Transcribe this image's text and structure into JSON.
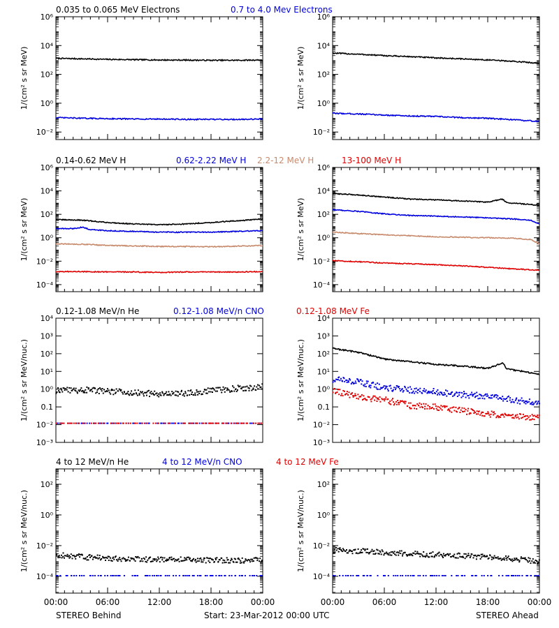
{
  "colors": {
    "black": "#000000",
    "blue": "#0000e0",
    "tan": "#c88a6c",
    "red": "#e00000"
  },
  "footer": {
    "left": "STEREO Behind",
    "center": "Start: 23-Mar-2012 00:00 UTC",
    "right": "STEREO Ahead"
  },
  "rows": [
    {
      "labels": [
        {
          "text": "0.035 to 0.065 MeV Electrons",
          "color": "black"
        },
        {
          "text": "0.7 to 4.0 Mev Electrons",
          "color": "blue"
        }
      ]
    },
    {
      "labels": [
        {
          "text": "0.14-0.62 MeV H",
          "color": "black"
        },
        {
          "text": "0.62-2.22 MeV H",
          "color": "blue"
        },
        {
          "text": "2.2-12 MeV H",
          "color": "tan"
        },
        {
          "text": "13-100 MeV H",
          "color": "red"
        }
      ]
    },
    {
      "labels": [
        {
          "text": "0.12-1.08 MeV/n He",
          "color": "black"
        },
        {
          "text": "0.12-1.08 MeV/n CNO",
          "color": "blue"
        },
        {
          "text": "0.12-1.08 MeV Fe",
          "color": "red"
        }
      ]
    },
    {
      "labels": [
        {
          "text": "4 to 12 MeV/n He",
          "color": "black"
        },
        {
          "text": "4 to 12 MeV/n CNO",
          "color": "blue"
        },
        {
          "text": "4 to 12 MeV Fe",
          "color": "red"
        }
      ]
    }
  ],
  "chart_data": [
    {
      "type": "line",
      "spacecraft": "STEREO Behind",
      "row": 0,
      "col": 0,
      "ylabel": "1/(cm² s sr MeV)",
      "ylog": true,
      "ylim": [
        0.003,
        1000000
      ],
      "ytick_exps": [
        -2,
        0,
        2,
        4,
        6
      ],
      "minor_ticks": true,
      "x": [
        "00:00",
        "06:00",
        "12:00",
        "18:00",
        "00:00"
      ],
      "xlim_hours": [
        0,
        24
      ],
      "series": [
        {
          "name": "0.035 to 0.065 MeV Electrons",
          "color": "black",
          "style": "line",
          "t": [
            0,
            3,
            6,
            9,
            12,
            15,
            18,
            21,
            24
          ],
          "v": [
            1300,
            1200,
            1100,
            1050,
            1000,
            980,
            950,
            950,
            1000
          ]
        },
        {
          "name": "0.7 to 4.0 Mev Electrons",
          "color": "blue",
          "style": "line",
          "t": [
            0,
            3,
            6,
            9,
            12,
            15,
            18,
            21,
            24
          ],
          "v": [
            0.1,
            0.09,
            0.085,
            0.08,
            0.08,
            0.075,
            0.075,
            0.075,
            0.08
          ]
        }
      ]
    },
    {
      "type": "line",
      "spacecraft": "STEREO Ahead",
      "row": 0,
      "col": 1,
      "ylabel": "1/(cm² s sr MeV)",
      "ylog": true,
      "ylim": [
        0.003,
        1000000
      ],
      "ytick_exps": [
        -2,
        0,
        2,
        4,
        6
      ],
      "minor_ticks": true,
      "x": [
        "00:00",
        "06:00",
        "12:00",
        "18:00",
        "00:00"
      ],
      "xlim_hours": [
        0,
        24
      ],
      "series": [
        {
          "name": "0.035 to 0.065 MeV Electrons",
          "color": "black",
          "style": "line",
          "t": [
            0,
            3,
            6,
            9,
            12,
            15,
            18,
            21,
            24
          ],
          "v": [
            3000,
            2500,
            2000,
            1700,
            1400,
            1200,
            1000,
            800,
            600
          ]
        },
        {
          "name": "0.7 to 4.0 Mev Electrons",
          "color": "blue",
          "style": "line",
          "t": [
            0,
            3,
            6,
            9,
            12,
            15,
            18,
            21,
            24
          ],
          "v": [
            0.2,
            0.18,
            0.15,
            0.13,
            0.12,
            0.1,
            0.09,
            0.07,
            0.055
          ]
        }
      ]
    },
    {
      "type": "line",
      "spacecraft": "STEREO Behind",
      "row": 1,
      "col": 0,
      "ylabel": "1/(cm² s sr MeV)",
      "ylog": true,
      "ylim": [
        2.5e-05,
        1000000
      ],
      "ytick_exps": [
        -4,
        -2,
        0,
        2,
        4,
        6
      ],
      "minor_ticks": true,
      "x": [
        "00:00",
        "06:00",
        "12:00",
        "18:00",
        "00:00"
      ],
      "xlim_hours": [
        0,
        24
      ],
      "series": [
        {
          "name": "0.14-0.62 MeV H",
          "color": "black",
          "style": "line",
          "t": [
            0,
            3,
            6,
            9,
            12,
            15,
            18,
            21,
            24
          ],
          "v": [
            35,
            32,
            20,
            15,
            13,
            15,
            20,
            28,
            40
          ]
        },
        {
          "name": "0.62-2.22 MeV H",
          "color": "blue",
          "style": "line",
          "t": [
            0,
            2,
            3,
            4,
            6,
            9,
            12,
            15,
            18,
            21,
            24
          ],
          "v": [
            6,
            6,
            8,
            5,
            4,
            3.5,
            3,
            3,
            3,
            3.5,
            4
          ]
        },
        {
          "name": "2.2-12 MeV H",
          "color": "tan",
          "style": "line",
          "t": [
            0,
            3,
            6,
            9,
            12,
            15,
            18,
            21,
            24
          ],
          "v": [
            0.3,
            0.28,
            0.22,
            0.2,
            0.18,
            0.18,
            0.17,
            0.19,
            0.22
          ]
        },
        {
          "name": "13-100 MeV H",
          "color": "red",
          "style": "line",
          "t": [
            0,
            3,
            6,
            9,
            12,
            15,
            18,
            21,
            24
          ],
          "v": [
            0.0013,
            0.0013,
            0.0012,
            0.0012,
            0.0011,
            0.0012,
            0.0012,
            0.0012,
            0.0013
          ]
        }
      ]
    },
    {
      "type": "line",
      "spacecraft": "STEREO Ahead",
      "row": 1,
      "col": 1,
      "ylabel": "1/(cm² s sr MeV)",
      "ylog": true,
      "ylim": [
        2.5e-05,
        1000000
      ],
      "ytick_exps": [
        -4,
        -2,
        0,
        2,
        4,
        6
      ],
      "minor_ticks": true,
      "x": [
        "00:00",
        "06:00",
        "12:00",
        "18:00",
        "00:00"
      ],
      "xlim_hours": [
        0,
        24
      ],
      "series": [
        {
          "name": "0.14-0.62 MeV H",
          "color": "black",
          "style": "line",
          "t": [
            0,
            3,
            6,
            9,
            12,
            15,
            18,
            19.7,
            20.2,
            21,
            24
          ],
          "v": [
            6000,
            4500,
            3000,
            2000,
            1700,
            1400,
            1100,
            2000,
            1000,
            900,
            600
          ]
        },
        {
          "name": "0.62-2.22 MeV H",
          "color": "blue",
          "style": "line",
          "t": [
            0,
            3,
            6,
            9,
            12,
            15,
            18,
            21,
            23,
            24
          ],
          "v": [
            250,
            180,
            110,
            80,
            70,
            60,
            50,
            40,
            30,
            15
          ]
        },
        {
          "name": "2.2-12 MeV H",
          "color": "tan",
          "style": "line",
          "t": [
            0,
            3,
            6,
            9,
            12,
            15,
            18,
            21,
            23,
            24
          ],
          "v": [
            3,
            2.3,
            1.8,
            1.5,
            1.2,
            1.1,
            1.0,
            0.9,
            0.7,
            0.3
          ]
        },
        {
          "name": "13-100 MeV H",
          "color": "red",
          "style": "line",
          "t": [
            0,
            3,
            6,
            9,
            12,
            15,
            18,
            21,
            24
          ],
          "v": [
            0.011,
            0.009,
            0.007,
            0.006,
            0.005,
            0.004,
            0.003,
            0.0022,
            0.0017
          ]
        }
      ]
    },
    {
      "type": "scatter",
      "spacecraft": "STEREO Behind",
      "row": 2,
      "col": 0,
      "ylabel": "1/(cm² s sr MeV/nuc.)",
      "ylog": true,
      "ylim": [
        0.001,
        10000
      ],
      "ytick_exps": [
        -3,
        -2,
        -1,
        0,
        1,
        2,
        3,
        4
      ],
      "tick_text": [
        "10⁻³",
        "10⁻²",
        "0.1",
        "10⁰",
        "10¹",
        "10²",
        "10³",
        "10⁴"
      ],
      "minor_ticks": false,
      "x": [
        "00:00",
        "06:00",
        "12:00",
        "18:00",
        "00:00"
      ],
      "xlim_hours": [
        0,
        24
      ],
      "series": [
        {
          "name": "0.12-1.08 MeV/n He",
          "color": "black",
          "style": "scatter",
          "t": [
            0,
            3,
            6,
            9,
            12,
            15,
            18,
            21,
            24
          ],
          "v": [
            0.8,
            0.9,
            0.8,
            0.6,
            0.55,
            0.6,
            0.8,
            1.1,
            1.4
          ]
        },
        {
          "name": "0.12-1.08 MeV/n CNO",
          "color": "blue",
          "style": "scatter",
          "t": [
            0,
            6,
            12,
            18,
            24
          ],
          "v": [
            0.012,
            0.012,
            0.012,
            0.012,
            0.012
          ]
        },
        {
          "name": "0.12-1.08 MeV Fe",
          "color": "red",
          "style": "scatter",
          "t": [
            0,
            6,
            12,
            18,
            24
          ],
          "v": [
            0.012,
            0.012,
            0.012,
            0.012,
            0.012
          ]
        }
      ]
    },
    {
      "type": "scatter",
      "spacecraft": "STEREO Ahead",
      "row": 2,
      "col": 1,
      "ylabel": "1/(cm² s sr MeV/nuc.)",
      "ylog": true,
      "ylim": [
        0.001,
        10000
      ],
      "ytick_exps": [
        -3,
        -2,
        -1,
        0,
        1,
        2,
        3,
        4
      ],
      "tick_text": [
        "10⁻³",
        "10⁻²",
        "0.1",
        "10⁰",
        "10¹",
        "10²",
        "10³",
        "10⁴"
      ],
      "minor_ticks": false,
      "x": [
        "00:00",
        "06:00",
        "12:00",
        "18:00",
        "00:00"
      ],
      "xlim_hours": [
        0,
        24
      ],
      "series": [
        {
          "name": "0.12-1.08 MeV/n He",
          "color": "black",
          "style": "line",
          "t": [
            0,
            3,
            6,
            9,
            12,
            15,
            18,
            19.8,
            20.2,
            21,
            24
          ],
          "v": [
            200,
            120,
            50,
            35,
            25,
            20,
            15,
            30,
            14,
            12,
            7
          ]
        },
        {
          "name": "0.12-1.08 MeV/n CNO",
          "color": "blue",
          "style": "scatter",
          "t": [
            0,
            3,
            6,
            9,
            12,
            15,
            18,
            21,
            24
          ],
          "v": [
            3.5,
            2.5,
            1.2,
            0.9,
            0.7,
            0.5,
            0.4,
            0.25,
            0.15
          ]
        },
        {
          "name": "0.12-1.08 MeV Fe",
          "color": "red",
          "style": "scatter",
          "t": [
            0,
            3,
            6,
            9,
            12,
            15,
            18,
            21,
            24
          ],
          "v": [
            0.8,
            0.35,
            0.25,
            0.12,
            0.1,
            0.06,
            0.04,
            0.03,
            0.025
          ]
        }
      ]
    },
    {
      "type": "scatter",
      "spacecraft": "STEREO Behind",
      "row": 3,
      "col": 0,
      "ylabel": "1/(cm² s sr MeV/nuc.)",
      "ylog": true,
      "ylim": [
        8e-06,
        1000
      ],
      "ytick_exps": [
        -4,
        -2,
        0,
        2
      ],
      "minor_ticks": true,
      "x": [
        "00:00",
        "06:00",
        "12:00",
        "18:00",
        "00:00"
      ],
      "xlim_hours": [
        0,
        24
      ],
      "series": [
        {
          "name": "4 to 12 MeV/n He",
          "color": "black",
          "style": "scatter",
          "t": [
            0,
            3,
            6,
            9,
            12,
            15,
            18,
            21,
            24
          ],
          "v": [
            0.0025,
            0.0018,
            0.0015,
            0.0013,
            0.0012,
            0.0012,
            0.0011,
            0.0011,
            0.0011
          ]
        },
        {
          "name": "4 to 12 MeV/n CNO",
          "color": "blue",
          "style": "scatter",
          "t": [
            0,
            6,
            12,
            18,
            24
          ],
          "v": [
            0.00011,
            0.00011,
            0.00011,
            0.00011,
            0.00011
          ]
        },
        {
          "name": "4 to 12 MeV Fe",
          "color": "red",
          "style": "scatter",
          "t": [],
          "v": []
        }
      ]
    },
    {
      "type": "scatter",
      "spacecraft": "STEREO Ahead",
      "row": 3,
      "col": 1,
      "ylabel": "1/(cm² s sr MeV/nuc.)",
      "ylog": true,
      "ylim": [
        8e-06,
        1000
      ],
      "ytick_exps": [
        -4,
        -2,
        0,
        2
      ],
      "minor_ticks": true,
      "x": [
        "00:00",
        "06:00",
        "12:00",
        "18:00",
        "00:00"
      ],
      "xlim_hours": [
        0,
        24
      ],
      "series": [
        {
          "name": "4 to 12 MeV/n He",
          "color": "black",
          "style": "scatter",
          "t": [
            0,
            3,
            6,
            9,
            12,
            15,
            18,
            21,
            24
          ],
          "v": [
            0.005,
            0.0045,
            0.0035,
            0.003,
            0.0025,
            0.0022,
            0.0018,
            0.0014,
            0.0009
          ]
        },
        {
          "name": "4 to 12 MeV/n CNO",
          "color": "blue",
          "style": "scatter",
          "t": [
            0,
            6,
            12,
            18,
            24
          ],
          "v": [
            0.00011,
            0.00011,
            0.00011,
            0.00011,
            0.00011
          ]
        },
        {
          "name": "4 to 12 MeV Fe",
          "color": "red",
          "style": "scatter",
          "t": [],
          "v": []
        }
      ]
    }
  ]
}
